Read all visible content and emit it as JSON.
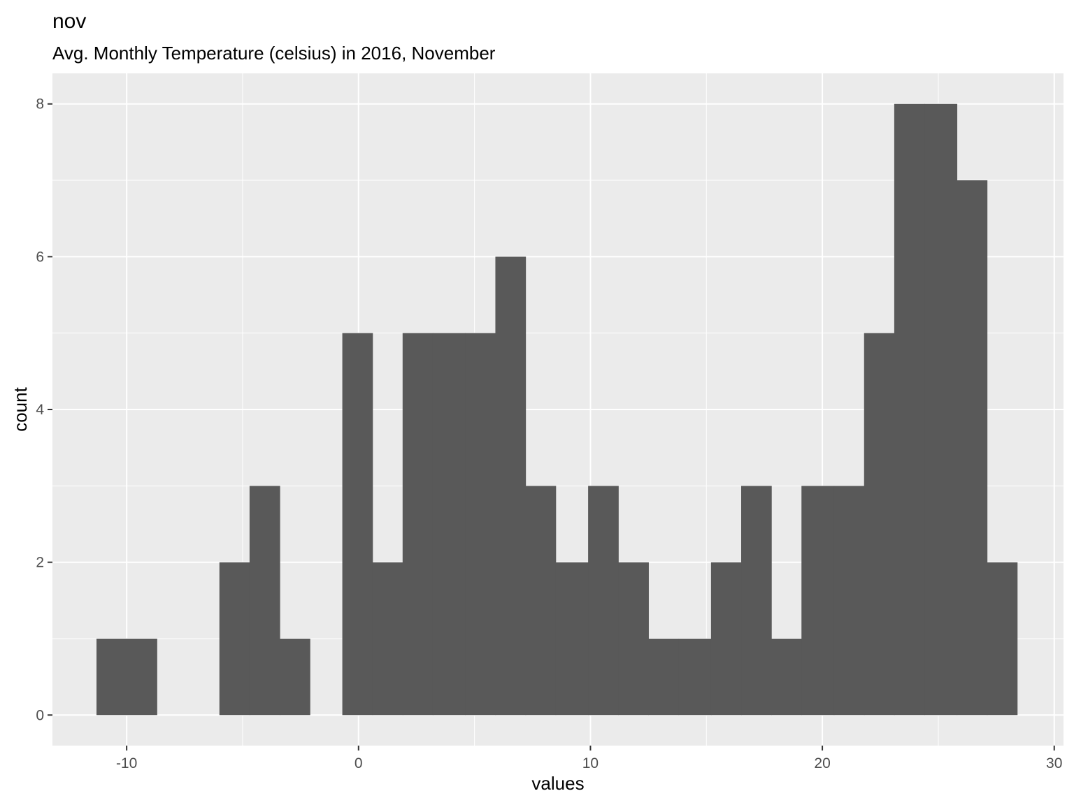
{
  "chart_data": {
    "type": "bar",
    "title": "nov",
    "subtitle": "Avg. Monthly Temperature (celsius) in 2016, November",
    "xlabel": "values",
    "ylabel": "count",
    "xlim": [
      -13.2,
      30.4
    ],
    "ylim": [
      -0.4,
      8.4
    ],
    "x_ticks": [
      -10,
      0,
      10,
      20,
      30
    ],
    "x_tick_labels": [
      "-10",
      "0",
      "10",
      "20",
      "30"
    ],
    "y_ticks": [
      0,
      2,
      4,
      6,
      8
    ],
    "y_tick_labels": [
      "0",
      "2",
      "4",
      "6",
      "8"
    ],
    "grid": true,
    "colors": {
      "panel": "#ebebeb",
      "grid": "#ffffff",
      "bar": "#595959",
      "tick": "#333333"
    },
    "bins": [
      {
        "x0": -11.3,
        "x1": -10.0,
        "count": 1
      },
      {
        "x0": -10.0,
        "x1": -8.7,
        "count": 1
      },
      {
        "x0": -8.7,
        "x1": -7.3,
        "count": 0
      },
      {
        "x0": -7.3,
        "x1": -6.0,
        "count": 0
      },
      {
        "x0": -6.0,
        "x1": -4.7,
        "count": 2
      },
      {
        "x0": -4.7,
        "x1": -3.4,
        "count": 3
      },
      {
        "x0": -3.4,
        "x1": -2.1,
        "count": 1
      },
      {
        "x0": -2.1,
        "x1": -0.7,
        "count": 0
      },
      {
        "x0": -0.7,
        "x1": 0.6,
        "count": 5
      },
      {
        "x0": 0.6,
        "x1": 1.9,
        "count": 2
      },
      {
        "x0": 1.9,
        "x1": 3.2,
        "count": 5
      },
      {
        "x0": 3.2,
        "x1": 4.6,
        "count": 5
      },
      {
        "x0": 4.6,
        "x1": 5.9,
        "count": 5
      },
      {
        "x0": 5.9,
        "x1": 7.2,
        "count": 6
      },
      {
        "x0": 7.2,
        "x1": 8.5,
        "count": 3
      },
      {
        "x0": 8.5,
        "x1": 9.9,
        "count": 2
      },
      {
        "x0": 9.9,
        "x1": 11.2,
        "count": 3
      },
      {
        "x0": 11.2,
        "x1": 12.5,
        "count": 2
      },
      {
        "x0": 12.5,
        "x1": 13.8,
        "count": 1
      },
      {
        "x0": 13.8,
        "x1": 15.2,
        "count": 1
      },
      {
        "x0": 15.2,
        "x1": 16.5,
        "count": 2
      },
      {
        "x0": 16.5,
        "x1": 17.8,
        "count": 3
      },
      {
        "x0": 17.8,
        "x1": 19.1,
        "count": 1
      },
      {
        "x0": 19.1,
        "x1": 20.5,
        "count": 3
      },
      {
        "x0": 20.5,
        "x1": 21.8,
        "count": 3
      },
      {
        "x0": 21.8,
        "x1": 23.1,
        "count": 5
      },
      {
        "x0": 23.1,
        "x1": 24.4,
        "count": 8
      },
      {
        "x0": 24.4,
        "x1": 25.8,
        "count": 8
      },
      {
        "x0": 25.8,
        "x1": 27.1,
        "count": 7
      },
      {
        "x0": 27.1,
        "x1": 28.4,
        "count": 2
      }
    ]
  }
}
